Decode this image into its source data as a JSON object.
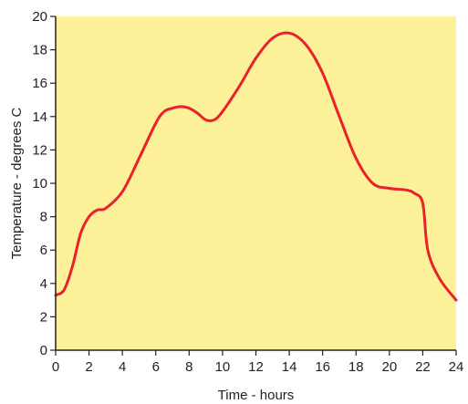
{
  "chart_data": {
    "type": "line",
    "xlabel": "Time - hours",
    "ylabel": "Temperature - degrees C",
    "xlim": [
      0,
      24
    ],
    "ylim": [
      0,
      20
    ],
    "x_ticks": [
      "0",
      "2",
      "4",
      "6",
      "8",
      "10",
      "12",
      "14",
      "16",
      "18",
      "20",
      "22",
      "24"
    ],
    "y_ticks": [
      "0",
      "2",
      "4",
      "6",
      "8",
      "10",
      "12",
      "14",
      "16",
      "18",
      "20"
    ],
    "grid": false,
    "series": [
      {
        "x": [
          0,
          0.5,
          1,
          1.5,
          2,
          2.5,
          3,
          4,
          5,
          6,
          6.5,
          7,
          7.5,
          8,
          8.5,
          9,
          9.5,
          10,
          11,
          12,
          13,
          14,
          15,
          16,
          17,
          18,
          19,
          20,
          21,
          21.5,
          22,
          22.3,
          23,
          24
        ],
        "y": [
          3.3,
          3.6,
          5.0,
          7.0,
          8.0,
          8.4,
          8.5,
          9.5,
          11.5,
          13.6,
          14.3,
          14.5,
          14.6,
          14.5,
          14.2,
          13.8,
          13.8,
          14.3,
          15.8,
          17.5,
          18.7,
          19.0,
          18.3,
          16.6,
          14.0,
          11.5,
          10.0,
          9.7,
          9.6,
          9.4,
          8.8,
          6.0,
          4.3,
          3.0
        ],
        "color": "#e8212b"
      }
    ],
    "colors": {
      "plot_background": "#fcf099",
      "line": "#e8212b",
      "axis": "#222222"
    }
  }
}
